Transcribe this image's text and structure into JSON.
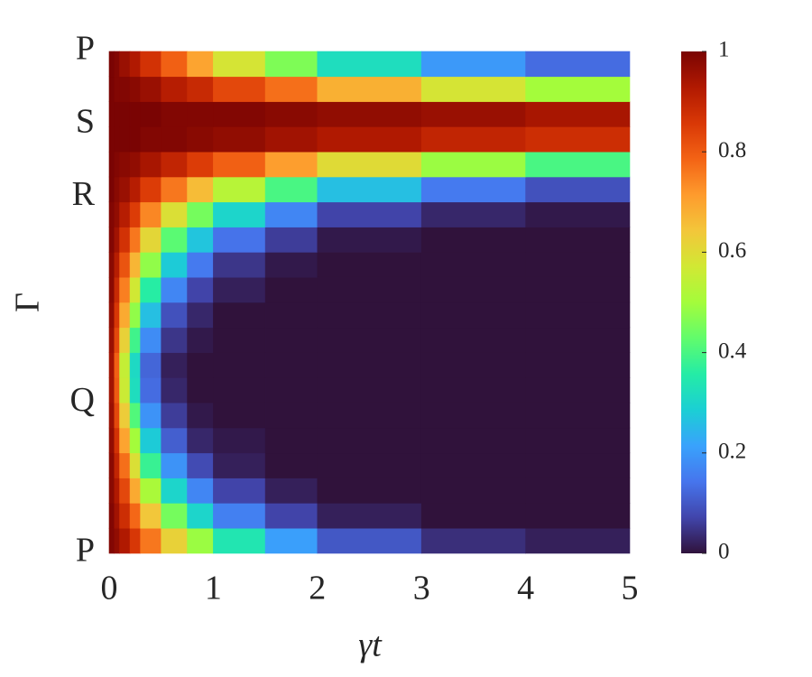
{
  "chart_data": {
    "type": "heatmap",
    "xlabel": "γt",
    "ylabel": "Γ",
    "xlim": [
      0,
      5
    ],
    "xticks": [
      0,
      1,
      2,
      3,
      4,
      5
    ],
    "ylim": [
      0,
      1
    ],
    "yticks": [
      {
        "value": 0,
        "label": "P"
      },
      {
        "value": 0.3,
        "label": "Q"
      },
      {
        "value": 0.71,
        "label": "R"
      },
      {
        "value": 0.855,
        "label": "S"
      },
      {
        "value": 1,
        "label": "P"
      }
    ],
    "x_edges": [
      0,
      0.05,
      0.1,
      0.2,
      0.3,
      0.5,
      0.75,
      1,
      1.5,
      2,
      3,
      4,
      5
    ],
    "y_edges": [
      0,
      0.05,
      0.1,
      0.15,
      0.2,
      0.25,
      0.3,
      0.35,
      0.4,
      0.45,
      0.5,
      0.55,
      0.6,
      0.65,
      0.7,
      0.75,
      0.8,
      0.85,
      0.9,
      0.95,
      1
    ],
    "values": [
      [
        0.99,
        0.97,
        0.93,
        0.86,
        0.76,
        0.62,
        0.49,
        0.34,
        0.21,
        0.1,
        0.04,
        0.02
      ],
      [
        0.99,
        0.95,
        0.88,
        0.78,
        0.64,
        0.45,
        0.3,
        0.16,
        0.07,
        0.02,
        0,
        0
      ],
      [
        0.98,
        0.93,
        0.83,
        0.69,
        0.51,
        0.3,
        0.17,
        0.07,
        0.02,
        0,
        0,
        0
      ],
      [
        0.98,
        0.9,
        0.77,
        0.59,
        0.38,
        0.19,
        0.08,
        0.02,
        0,
        0,
        0,
        0
      ],
      [
        0.97,
        0.87,
        0.7,
        0.5,
        0.28,
        0.11,
        0.03,
        0.01,
        0,
        0,
        0,
        0
      ],
      [
        0.96,
        0.83,
        0.63,
        0.41,
        0.19,
        0.06,
        0.01,
        0,
        0,
        0,
        0,
        0
      ],
      [
        0.95,
        0.8,
        0.56,
        0.32,
        0.13,
        0.03,
        0,
        0,
        0,
        0,
        0,
        0
      ],
      [
        0.95,
        0.79,
        0.55,
        0.31,
        0.12,
        0.02,
        0,
        0,
        0,
        0,
        0,
        0
      ],
      [
        0.96,
        0.83,
        0.62,
        0.39,
        0.18,
        0.05,
        0.01,
        0,
        0,
        0,
        0,
        0
      ],
      [
        0.97,
        0.86,
        0.69,
        0.48,
        0.26,
        0.09,
        0.03,
        0,
        0,
        0,
        0,
        0
      ],
      [
        0.98,
        0.89,
        0.75,
        0.57,
        0.36,
        0.17,
        0.07,
        0.02,
        0,
        0,
        0,
        0
      ],
      [
        0.98,
        0.92,
        0.81,
        0.67,
        0.48,
        0.28,
        0.15,
        0.05,
        0.01,
        0,
        0,
        0
      ],
      [
        0.99,
        0.95,
        0.87,
        0.76,
        0.61,
        0.42,
        0.27,
        0.14,
        0.06,
        0.01,
        0,
        0
      ],
      [
        0.99,
        0.97,
        0.92,
        0.85,
        0.74,
        0.59,
        0.45,
        0.3,
        0.17,
        0.07,
        0.03,
        0.01
      ],
      [
        1,
        0.98,
        0.96,
        0.92,
        0.85,
        0.76,
        0.66,
        0.53,
        0.4,
        0.26,
        0.15,
        0.09
      ],
      [
        1,
        0.99,
        0.98,
        0.97,
        0.94,
        0.9,
        0.85,
        0.79,
        0.71,
        0.6,
        0.49,
        0.4
      ],
      [
        1,
        1,
        1,
        1,
        0.99,
        0.99,
        0.98,
        0.97,
        0.95,
        0.93,
        0.9,
        0.88
      ],
      [
        1,
        1,
        1,
        1,
        1,
        0.99,
        0.99,
        0.99,
        0.98,
        0.97,
        0.96,
        0.94
      ],
      [
        1,
        0.99,
        0.99,
        0.98,
        0.96,
        0.92,
        0.89,
        0.83,
        0.77,
        0.68,
        0.58,
        0.5
      ],
      [
        1,
        0.99,
        0.96,
        0.93,
        0.87,
        0.79,
        0.7,
        0.58,
        0.46,
        0.32,
        0.2,
        0.13
      ]
    ],
    "colormap": [
      "#30123b",
      "#4145ab",
      "#4675ed",
      "#39a2fc",
      "#1bcfd4",
      "#24eca6",
      "#61fc6c",
      "#a4fc3b",
      "#d1e834",
      "#f3c63a",
      "#fe9b2d",
      "#f36315",
      "#d93806",
      "#b11901",
      "#7a0403"
    ],
    "colorbar": {
      "lim": [
        0,
        1
      ],
      "ticks": [
        0,
        0.2,
        0.4,
        0.6,
        0.8,
        1
      ]
    }
  }
}
